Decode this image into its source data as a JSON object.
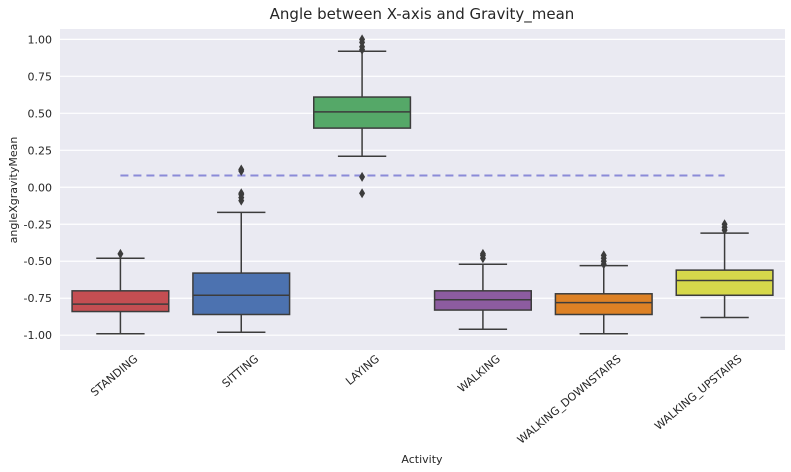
{
  "chart_data": {
    "type": "box",
    "title": "Angle between X-axis and Gravity_mean",
    "xlabel": "Activity",
    "ylabel": "angleXgravityMean",
    "ylim": [
      -1.1,
      1.07
    ],
    "yticks": [
      "1.00",
      "0.75",
      "0.50",
      "0.25",
      "0.00",
      "-0.25",
      "-0.50",
      "-0.75",
      "-1.00"
    ],
    "ytick_values": [
      1.0,
      0.75,
      0.5,
      0.25,
      0.0,
      -0.25,
      -0.5,
      -0.75,
      -1.0
    ],
    "grid": true,
    "reference_line": {
      "y": 0.08,
      "x_from": "STANDING",
      "x_to": "WALKING_UPSTAIRS",
      "style": "dashed",
      "color": "#8b8bd8"
    },
    "categories": [
      "STANDING",
      "SITTING",
      "LAYING",
      "WALKING",
      "WALKING_DOWNSTAIRS",
      "WALKING_UPSTAIRS"
    ],
    "boxes": [
      {
        "category": "STANDING",
        "whisker_low": -0.99,
        "q1": -0.84,
        "median": -0.79,
        "q3": -0.7,
        "whisker_high": -0.48,
        "outliers": [
          -0.45
        ],
        "color": "#c44e52"
      },
      {
        "category": "SITTING",
        "whisker_low": -0.98,
        "q1": -0.86,
        "median": -0.73,
        "q3": -0.58,
        "whisker_high": -0.17,
        "outliers": [
          -0.09,
          -0.07,
          -0.05,
          -0.04,
          0.11,
          0.12
        ],
        "color": "#4c72b0"
      },
      {
        "category": "LAYING",
        "whisker_low": 0.21,
        "q1": 0.4,
        "median": 0.51,
        "q3": 0.61,
        "whisker_high": 0.92,
        "outliers": [
          0.93,
          0.95,
          0.98,
          1.0,
          0.07,
          -0.04
        ],
        "color": "#55a868"
      },
      {
        "category": "WALKING",
        "whisker_low": -0.96,
        "q1": -0.83,
        "median": -0.76,
        "q3": -0.7,
        "whisker_high": -0.52,
        "outliers": [
          -0.48,
          -0.46,
          -0.45
        ],
        "color": "#8c5ca0"
      },
      {
        "category": "WALKING_DOWNSTAIRS",
        "whisker_low": -0.99,
        "q1": -0.86,
        "median": -0.78,
        "q3": -0.72,
        "whisker_high": -0.53,
        "outliers": [
          -0.52,
          -0.5,
          -0.48,
          -0.46
        ],
        "color": "#dd8125"
      },
      {
        "category": "WALKING_UPSTAIRS",
        "whisker_low": -0.88,
        "q1": -0.73,
        "median": -0.63,
        "q3": -0.56,
        "whisker_high": -0.31,
        "outliers": [
          -0.29,
          -0.27,
          -0.25
        ],
        "color": "#d6d84b"
      }
    ]
  }
}
